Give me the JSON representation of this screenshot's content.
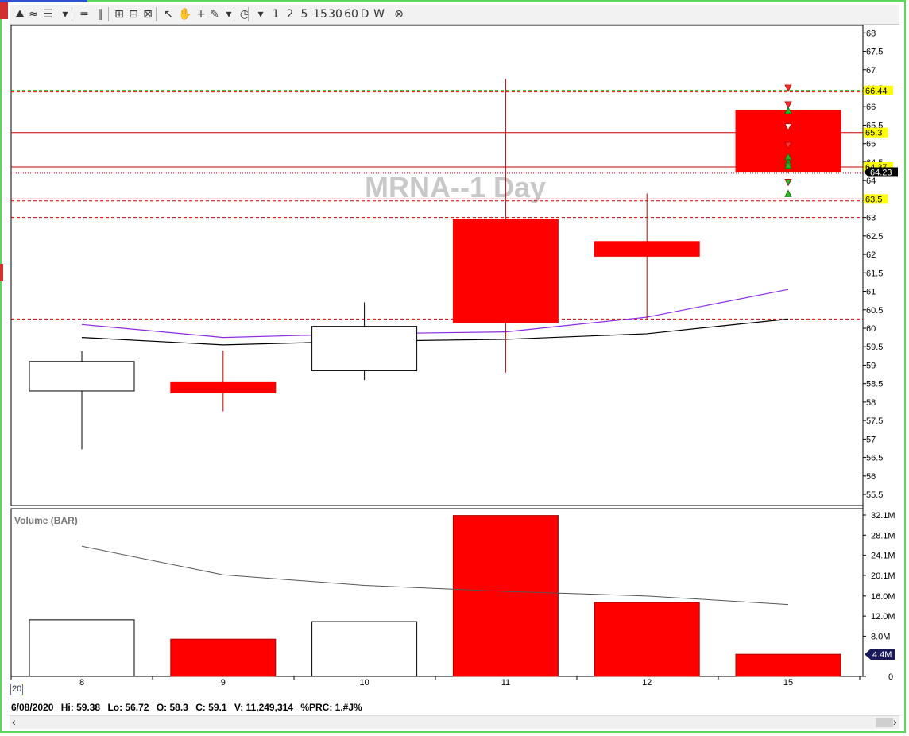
{
  "toolbar": {
    "items": [
      {
        "name": "chart-type-icon",
        "glyph": "⛰"
      },
      {
        "name": "line-chart-icon",
        "glyph": "≈"
      },
      {
        "name": "indicator-icon",
        "glyph": "☰"
      },
      {
        "name": "dropdown-icon",
        "glyph": "▾"
      },
      {
        "name": "hlines-icon",
        "glyph": "═"
      },
      {
        "name": "vlines-icon",
        "glyph": "∥"
      },
      {
        "name": "zoom-in-icon",
        "glyph": "⊞"
      },
      {
        "name": "zoom-fit-icon",
        "glyph": "⊟"
      },
      {
        "name": "zoom-out-icon",
        "glyph": "⊠"
      },
      {
        "name": "pointer-icon",
        "glyph": "↖"
      },
      {
        "name": "hand-icon",
        "glyph": "✋"
      },
      {
        "name": "crosshair-icon",
        "glyph": "+"
      },
      {
        "name": "pencil-icon",
        "glyph": "✎"
      },
      {
        "name": "pencil-dropdown-icon",
        "glyph": "▾"
      },
      {
        "name": "clock-icon",
        "glyph": "◷"
      },
      {
        "name": "clock-dropdown-icon",
        "glyph": "▾"
      }
    ],
    "intervals": [
      "1",
      "2",
      "5",
      "15",
      "30",
      "60",
      "D",
      "W"
    ],
    "close_glyph": "⊗"
  },
  "chart": {
    "watermark": "MRNA--1 Day",
    "volume_label": "Volume (BAR)",
    "footer_box": "20",
    "price_axis_ticks": [
      "68",
      "67.5",
      "67",
      "66.5",
      "66",
      "65.5",
      "65",
      "64.5",
      "64",
      "63.5",
      "63",
      "62.5",
      "62",
      "61.5",
      "61",
      "60.5",
      "60",
      "59.5",
      "59",
      "58.5",
      "58",
      "57.5",
      "57",
      "56.5",
      "56",
      "55.5"
    ],
    "price_badges": [
      {
        "label": "66.44",
        "value": 66.44,
        "bg": "#ffff00",
        "fg": "#000000"
      },
      {
        "label": "65.3",
        "value": 65.3,
        "bg": "#ffff00",
        "fg": "#000000"
      },
      {
        "label": "64.37",
        "value": 64.37,
        "bg": "#ffff00",
        "fg": "#000000"
      },
      {
        "label": "64.23",
        "value": 64.23,
        "bg": "#000000",
        "fg": "#ffffff"
      },
      {
        "label": "63.5",
        "value": 63.5,
        "bg": "#ffff00",
        "fg": "#000000"
      }
    ],
    "volume_axis_ticks": [
      "32.1M",
      "28.1M",
      "24.1M",
      "20.1M",
      "16.0M",
      "12.0M",
      "8.0M",
      "0"
    ],
    "volume_badge": "4.4M",
    "status": {
      "date": "6/08/2020",
      "hi": "Hi: 59.38",
      "lo": "Lo: 56.72",
      "open": "O: 58.3",
      "close": "C: 59.1",
      "volume": "V: 11,249,314",
      "extra": "%PRC: 1.#J%"
    }
  },
  "chart_data": {
    "type": "candlestick",
    "title": "MRNA--1 Day",
    "categories": [
      "8",
      "9",
      "10",
      "11",
      "12",
      "15"
    ],
    "ohlc": [
      {
        "x": "8",
        "open": 58.3,
        "high": 59.38,
        "low": 56.72,
        "close": 59.1
      },
      {
        "x": "9",
        "open": 58.55,
        "high": 59.4,
        "low": 57.75,
        "close": 58.25
      },
      {
        "x": "10",
        "open": 58.85,
        "high": 60.7,
        "low": 58.6,
        "close": 60.05
      },
      {
        "x": "11",
        "open": 62.95,
        "high": 66.75,
        "low": 58.8,
        "close": 60.15
      },
      {
        "x": "12",
        "open": 62.35,
        "high": 63.65,
        "low": 60.25,
        "close": 61.95
      },
      {
        "x": "15",
        "open": 65.9,
        "high": 65.9,
        "low": 64.2,
        "close": 64.23
      }
    ],
    "candle_colors": {
      "up": "#ffffff",
      "down": "#ff0000"
    },
    "moving_averages": [
      {
        "color": "#8a2be2",
        "values": [
          60.1,
          59.75,
          59.85,
          59.9,
          60.3,
          61.05
        ]
      },
      {
        "color": "#000000",
        "values": [
          59.75,
          59.55,
          59.65,
          59.7,
          59.85,
          60.25
        ]
      }
    ],
    "horizontal_lines": [
      {
        "value": 66.44,
        "color": "#00b000",
        "style": "dashed"
      },
      {
        "value": 66.4,
        "color": "#ff0000",
        "style": "dashed"
      },
      {
        "value": 65.3,
        "color": "#cc0000",
        "style": "solid"
      },
      {
        "value": 64.37,
        "color": "#cc0000",
        "style": "solid"
      },
      {
        "value": 64.2,
        "color": "#cc0000",
        "style": "dotted"
      },
      {
        "value": 63.5,
        "color": "#cc0000",
        "style": "solid"
      },
      {
        "value": 63.45,
        "color": "#cc0000",
        "style": "dashed"
      },
      {
        "value": 63.0,
        "color": "#cc0000",
        "style": "dashed"
      },
      {
        "value": 60.25,
        "color": "#cc0000",
        "style": "dashed"
      }
    ],
    "signals": [
      {
        "value": 66.5,
        "dir": "down",
        "color": "#ff3030"
      },
      {
        "value": 66.05,
        "dir": "down",
        "color": "#ff3030"
      },
      {
        "value": 65.9,
        "dir": "up",
        "color": "#22bb22"
      },
      {
        "value": 65.45,
        "dir": "down",
        "color": "#ffffff"
      },
      {
        "value": 64.95,
        "dir": "down",
        "color": "#ff3030"
      },
      {
        "value": 64.65,
        "dir": "up",
        "color": "#22bb22"
      },
      {
        "value": 64.5,
        "dir": "up",
        "color": "#22bb22"
      },
      {
        "value": 64.42,
        "dir": "up",
        "color": "#22bb22"
      },
      {
        "value": 63.95,
        "dir": "down",
        "color": "#22bb22"
      },
      {
        "value": 63.65,
        "dir": "up",
        "color": "#22bb22"
      }
    ],
    "ylim": [
      55.2,
      68.2
    ],
    "volume": {
      "values": [
        11.25,
        7.4,
        10.9,
        32.0,
        14.7,
        4.4
      ],
      "colors": [
        "#ffffff",
        "#ff0000",
        "#ffffff",
        "#ff0000",
        "#ff0000",
        "#ff0000"
      ],
      "average": [
        25.9,
        20.2,
        18.1,
        16.9,
        16.0,
        14.3
      ],
      "ylim": [
        0,
        32.1
      ],
      "unit": "M"
    }
  }
}
